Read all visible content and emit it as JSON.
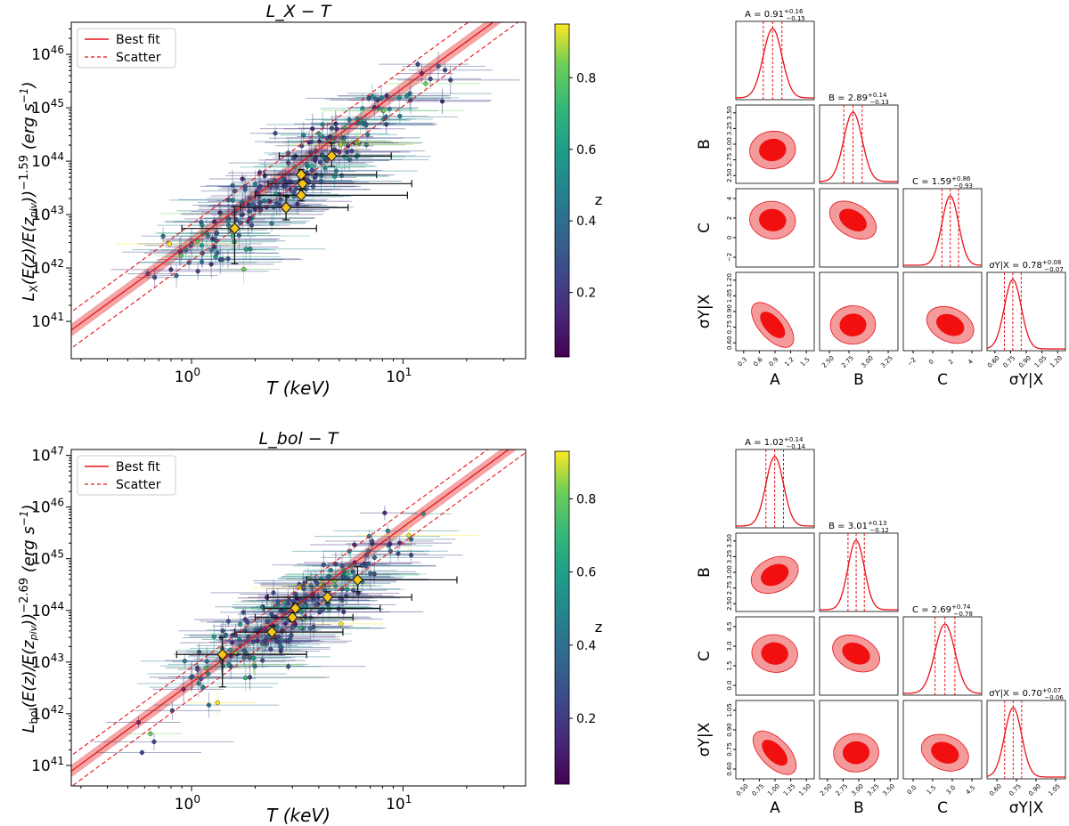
{
  "figure": {
    "caption_marker": ""
  },
  "chart_data": [
    {
      "type": "scatter",
      "title": "L_X − T",
      "xlabel": "T (keV)",
      "ylabel": "L_X (E(z)/E(z_piv))^-1.59 (erg s^-1)",
      "ylabel_exponent": "−1.59",
      "xscale": "log",
      "yscale": "log",
      "xlim": [
        0.27,
        38
      ],
      "ylim": [
        2e+40,
        4e+46
      ],
      "x_ticks": [
        "10^0",
        "10^1"
      ],
      "y_ticks": [
        "10^41",
        "10^42",
        "10^43",
        "10^44",
        "10^45",
        "10^46"
      ],
      "legend": {
        "position": "top-left",
        "entries": [
          "Best fit",
          "Scatter"
        ]
      },
      "fit_line": {
        "log_norm_at_T1": 42.48,
        "slope": 2.89,
        "scatter_dex": 0.34
      },
      "binned_points": [
        {
          "T": 1.6,
          "L": 5.5e+42,
          "Tlo": 0.9,
          "Thi": 3.9,
          "Llo": 1.2e+42,
          "Lhi": 1.4e+43
        },
        {
          "T": 2.8,
          "L": 1.35e+43,
          "Tlo": 1.7,
          "Thi": 5.5,
          "Llo": 8e+42,
          "Lhi": 2.2e+43
        },
        {
          "T": 3.3,
          "L": 2.3e+43,
          "Tlo": 2.0,
          "Thi": 10.5,
          "Llo": 1.8e+43,
          "Lhi": 3e+43
        },
        {
          "T": 3.35,
          "L": 3.8e+43,
          "Tlo": 2.3,
          "Thi": 11.0,
          "Llo": 3e+43,
          "Lhi": 4.8e+43
        },
        {
          "T": 3.3,
          "L": 5.6e+43,
          "Tlo": 2.2,
          "Thi": 7.5,
          "Llo": 4.5e+43,
          "Lhi": 7e+43
        },
        {
          "T": 4.6,
          "L": 1.25e+44,
          "Tlo": 2.6,
          "Thi": 8.8,
          "Llo": 8e+43,
          "Lhi": 2.2e+44
        }
      ],
      "colorbar": {
        "label": "z",
        "range": [
          0.02,
          0.95
        ],
        "ticks": [
          "0.2",
          "0.4",
          "0.6",
          "0.8"
        ]
      }
    },
    {
      "type": "scatter",
      "title": "L_bol − T",
      "xlabel": "T (keV)",
      "ylabel": "L_bol (E(z)/E(z_piv))^-2.69 (erg s^-1)",
      "ylabel_exponent": "−2.69",
      "xscale": "log",
      "yscale": "log",
      "xlim": [
        0.27,
        38
      ],
      "ylim": [
        4e+40,
        1.3e+47
      ],
      "x_ticks": [
        "10^0",
        "10^1"
      ],
      "y_ticks": [
        "10^41",
        "10^42",
        "10^43",
        "10^44",
        "10^45",
        "10^46",
        "10^47"
      ],
      "legend": {
        "position": "top-left",
        "entries": [
          "Best fit",
          "Scatter"
        ]
      },
      "fit_line": {
        "log_norm_at_T1": 42.6,
        "slope": 3.01,
        "scatter_dex": 0.3
      },
      "binned_points": [
        {
          "T": 1.4,
          "L": 1.4e+43,
          "Tlo": 0.85,
          "Thi": 3.5,
          "Llo": 3.3e+42,
          "Lhi": 3e+43
        },
        {
          "T": 2.4,
          "L": 3.8e+43,
          "Tlo": 1.6,
          "Thi": 5.2,
          "Llo": 2.8e+43,
          "Lhi": 5e+43
        },
        {
          "T": 3.0,
          "L": 7.3e+43,
          "Tlo": 2.0,
          "Thi": 5.8,
          "Llo": 6e+43,
          "Lhi": 9e+43
        },
        {
          "T": 3.1,
          "L": 1.1e+44,
          "Tlo": 2.2,
          "Thi": 7.8,
          "Llo": 9e+43,
          "Lhi": 1.35e+44
        },
        {
          "T": 4.4,
          "L": 1.8e+44,
          "Tlo": 2.3,
          "Thi": 11.0,
          "Llo": 1.4e+44,
          "Lhi": 2.3e+44
        },
        {
          "T": 6.1,
          "L": 3.9e+44,
          "Tlo": 3.5,
          "Thi": 18.0,
          "Llo": 2.3e+44,
          "Lhi": 7e+44
        }
      ],
      "colorbar": {
        "label": "z",
        "range": [
          0.02,
          0.93
        ],
        "ticks": [
          "0.2",
          "0.4",
          "0.6",
          "0.8"
        ]
      }
    },
    {
      "type": "corner",
      "parameters": [
        "A",
        "B",
        "C",
        "σY|X"
      ],
      "titles": [
        {
          "text": "A = 0.91",
          "plus": "+0.16",
          "minus": "−0.15"
        },
        {
          "text": "B = 2.89",
          "plus": "+0.14",
          "minus": "−0.13"
        },
        {
          "text": "C = 1.59",
          "plus": "+0.86",
          "minus": "−0.93"
        },
        {
          "text": "σY|X = 0.78",
          "plus": "+0.08",
          "minus": "−0.07"
        }
      ],
      "medians": [
        0.91,
        2.89,
        1.59,
        0.78
      ],
      "sigmas": [
        0.155,
        0.135,
        0.9,
        0.075
      ],
      "ranges": [
        [
          0.3,
          1.6
        ],
        [
          2.4,
          3.55
        ],
        [
          -3.5,
          5
        ],
        [
          0.55,
          1.25
        ]
      ],
      "x_ticks": [
        [
          "0.3",
          "0.6",
          "0.9",
          "1.2",
          "1.5"
        ],
        [
          "2.50",
          "2.75",
          "3.00",
          "3.25"
        ],
        [
          "−2",
          "0",
          "2",
          "4"
        ],
        [
          "0.60",
          "0.75",
          "0.90",
          "1.05",
          "1.20"
        ]
      ],
      "y_ticks": [
        [
          "2.50",
          "2.75",
          "3.00",
          "3.25",
          "3.50"
        ],
        [
          "−2",
          "0",
          "2",
          "4"
        ],
        [
          "0.60",
          "0.75",
          "0.90",
          "1.05",
          "1.20"
        ]
      ],
      "correlations": {
        "B-A": 0.1,
        "C-A": -0.1,
        "C-B": -0.45,
        "σ-A": -0.75,
        "σ-B": 0.05,
        "σ-C": -0.35
      }
    },
    {
      "type": "corner",
      "parameters": [
        "A",
        "B",
        "C",
        "σY|X"
      ],
      "titles": [
        {
          "text": "A = 1.02",
          "plus": "+0.14",
          "minus": "−0.14"
        },
        {
          "text": "B = 3.01",
          "plus": "+0.13",
          "minus": "−0.12"
        },
        {
          "text": "C = 2.69",
          "plus": "+0.74",
          "minus": "−0.78"
        },
        {
          "text": "σY|X = 0.70",
          "plus": "+0.07",
          "minus": "−0.06"
        }
      ],
      "medians": [
        1.02,
        3.01,
        2.69,
        0.7
      ],
      "sigmas": [
        0.14,
        0.125,
        0.76,
        0.065
      ],
      "ranges": [
        [
          0.4,
          1.65
        ],
        [
          2.45,
          3.65
        ],
        [
          -0.5,
          5.5
        ],
        [
          0.5,
          1.1
        ]
      ],
      "x_ticks": [
        [
          "0.50",
          "0.75",
          "1.00",
          "1.25",
          "1.50"
        ],
        [
          "2.50",
          "2.75",
          "3.00",
          "3.25",
          "3.50"
        ],
        [
          "0.0",
          "1.5",
          "3.0",
          "4.5"
        ],
        [
          "0.60",
          "0.75",
          "0.90",
          "1.05"
        ]
      ],
      "y_ticks": [
        [
          "2.50",
          "2.75",
          "3.00",
          "3.25",
          "3.50"
        ],
        [
          "0.0",
          "1.5",
          "3.0",
          "4.5"
        ],
        [
          "0.60",
          "0.75",
          "0.90",
          "1.05"
        ]
      ],
      "correlations": {
        "B-A": 0.35,
        "C-A": -0.1,
        "C-B": -0.35,
        "σ-A": -0.7,
        "σ-B": 0.05,
        "σ-C": -0.3
      }
    }
  ]
}
